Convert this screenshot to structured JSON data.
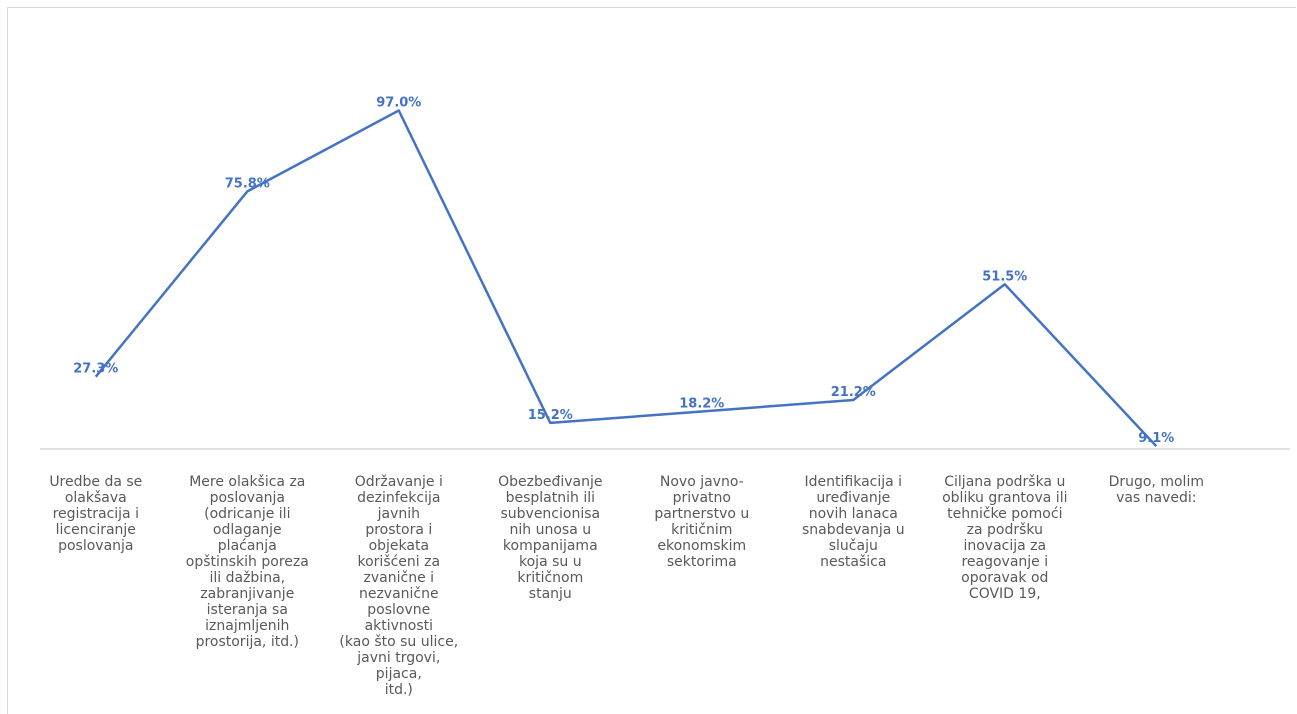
{
  "chart_data": {
    "type": "line",
    "title": "",
    "xlabel": "",
    "ylabel": "",
    "ylim": [
      0,
      100
    ],
    "grid": false,
    "legend": "none",
    "line_color": "#4472c4",
    "axis_color": "#d9d9d9",
    "label_color": "#595959",
    "categories": [
      "Uredbe da se olakšava registracija i licenciranje poslovanja",
      "Mere olakšica za poslovanja (odricanje ili odlaganje plaćanja opštinskih poreza ili dažbina, zabranjivanje isteranja sa iznajmljenih prostorija, itd.)",
      "Održavanje i dezinfekcija javnih prostora i objekata korišćeni za zvanične i nezvanične poslovne aktivnosti (kao što su ulice, javni trgovi, pijaca, itd.)",
      "Obezbeđivanje besplatnih ili subvencionisanih unosa u kompanijama koja su u kritičnom stanju",
      "Novo javno-privatno partnerstvo u kritičnim ekonomskim sektorima",
      "Identifikacija i uređivanje novih lanaca snabdevanja u slučaju nestašica",
      "Ciljana podrška u obliku grantova ili tehničke pomoći za podršku inovacija za reagovanje i oporavak od COVID 19,",
      "Drugo, molim vas navedi:"
    ],
    "category_lines": [
      "Uredbe da se\nolakšava\nregistracija i\nlicenciranje\nposlovanja",
      "Mere olakšica za\nposlovanja\n(odricanje ili\nodlaganje\nplaćanja\nopštinskih poreza\nili dažbina,\nzabranjivanje\nisteranja sa\niznajmljenih\nprostorija, itd.)",
      "Održavanje i\ndezinfekcija javnih\nprostora i objekata\nkorišćeni za\nzvanične i\nnezvanične\nposlovne aktivnosti\n(kao što su ulice,\njavni trgovi, pijaca,\nitd.)",
      "Obezbeđivanje\nbesplatnih ili\nsubvencionisa\nnih unosa u\nkompanijama\nkoja su u\nkritičnom\nstanju",
      "Novo javno-\nprivatno\npartnerstvo u\nkritičnim\nekonomskim\nsektorima",
      "Identifikacija i\nuređivanje\nnovih lanaca\nsnabdevanja u\nslučaju\nnestašica",
      "Ciljana podrška u\nobliku grantova ili\ntehničke pomoći\nza podršku\ninovacija za\nreagovanje i\noporavak od\nCOVID 19,",
      "Drugo, molim\nvas navedi:"
    ],
    "values": [
      27.3,
      75.8,
      97.0,
      15.2,
      18.2,
      21.2,
      51.5,
      9.1
    ],
    "value_labels": [
      "27.3%",
      "75.8%",
      "97.0%",
      "15.2%",
      "18.2%",
      "21.2%",
      "51.5%",
      "9.1%"
    ]
  }
}
